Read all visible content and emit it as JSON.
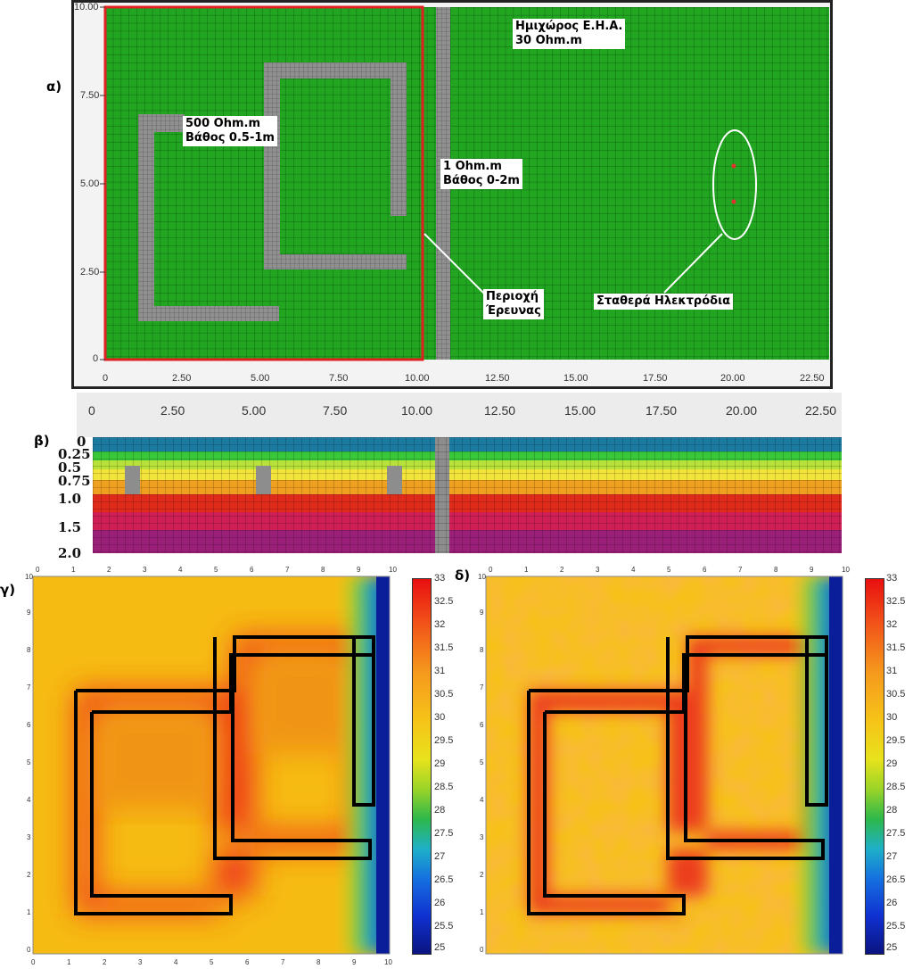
{
  "panel_a": {
    "letter": "α)",
    "region_label": "Ημιχώρος Ε.Η.Α.",
    "region_res": "30 Ohm.m",
    "box500_line1": "500 Ohm.m",
    "box500_line2": "Βάθος 0.5-1m",
    "box1_line1": "1 Ohm.m",
    "box1_line2": "Βάθος 0-2m",
    "area_line1": "Περιοχή",
    "area_line2": "Έρευνας",
    "electrodes": "Σταθερά Ηλεκτρόδια",
    "y_ticks": [
      "10.00",
      "7.50",
      "5.00",
      "2.50",
      "0"
    ],
    "x_ticks": [
      "0",
      "2.50",
      "5.00",
      "7.50",
      "10.00",
      "12.50",
      "15.00",
      "17.50",
      "20.00",
      "22.50"
    ],
    "colors": {
      "background": "#1e9e1e",
      "anomaly": "#8a8a8a",
      "outline": "#e02020"
    }
  },
  "panel_b": {
    "letter": "β)",
    "x_ticks": [
      "0",
      "2.50",
      "5.00",
      "7.50",
      "10.00",
      "12.50",
      "15.00",
      "17.50",
      "20.00",
      "22.50"
    ],
    "depth_ticks": [
      "0",
      "0.25",
      "0.5",
      "0.75",
      "1.0",
      "1.5",
      "2.0"
    ],
    "layer_colors": [
      "#1a7aa0",
      "#39c83a",
      "#b7e23a",
      "#f2e43a",
      "#f0a020",
      "#e02a1a",
      "#cf1f55",
      "#9a1f78"
    ]
  },
  "panel_c": {
    "letter": "γ)",
    "x_ticks": [
      "0",
      "1",
      "2",
      "3",
      "4",
      "5",
      "6",
      "7",
      "8",
      "9",
      "10"
    ],
    "y_ticks": [
      "10",
      "9",
      "8",
      "7",
      "6",
      "5",
      "4",
      "3",
      "2",
      "1",
      "0"
    ]
  },
  "panel_d": {
    "letter": "δ)",
    "x_ticks": [
      "0",
      "1",
      "2",
      "3",
      "4",
      "5",
      "6",
      "7",
      "8",
      "9",
      "10"
    ],
    "y_ticks": [
      "10",
      "9",
      "8",
      "7",
      "6",
      "5",
      "4",
      "3",
      "2",
      "1",
      "0"
    ]
  },
  "colorbar": {
    "ticks": [
      "33",
      "32.5",
      "32",
      "31.5",
      "31",
      "30.5",
      "30",
      "29.5",
      "29",
      "28.5",
      "28",
      "27.5",
      "27",
      "26.5",
      "26",
      "25.5",
      "25"
    ]
  }
}
